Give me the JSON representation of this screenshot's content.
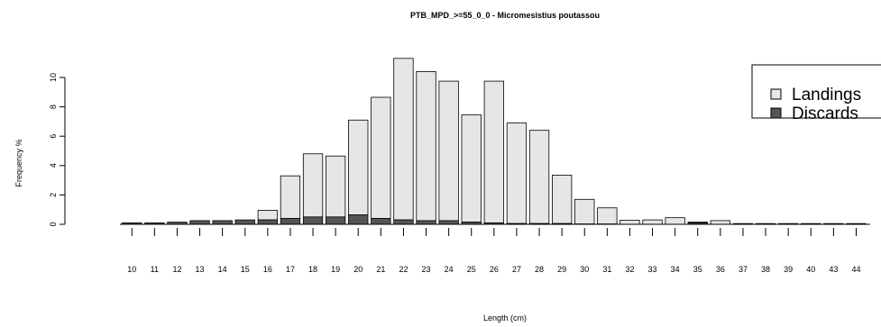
{
  "chart_data": {
    "type": "bar",
    "stacked": true,
    "title": "PTB_MPD_>=55_0_0 - Micromesistius poutassou",
    "xlabel": "Length (cm)",
    "ylabel": "Frequency %",
    "categories": [
      "10",
      "11",
      "12",
      "13",
      "14",
      "15",
      "16",
      "17",
      "18",
      "19",
      "20",
      "21",
      "22",
      "23",
      "24",
      "25",
      "26",
      "27",
      "28",
      "29",
      "30",
      "31",
      "32",
      "33",
      "34",
      "35",
      "36",
      "37",
      "38",
      "39",
      "40",
      "43",
      "44"
    ],
    "yticks": [
      "0",
      "2",
      "4",
      "6",
      "8",
      "10"
    ],
    "ylim": [
      0,
      11.3
    ],
    "series": [
      {
        "name": "Discards",
        "color": "#555555",
        "values": [
          0.1,
          0.1,
          0.15,
          0.25,
          0.25,
          0.3,
          0.3,
          0.4,
          0.5,
          0.5,
          0.65,
          0.4,
          0.3,
          0.25,
          0.25,
          0.15,
          0.1,
          0.05,
          0.05,
          0.05,
          0.02,
          0.02,
          0.0,
          0.0,
          0.0,
          0.1,
          0.0,
          0.05,
          0.05,
          0.05,
          0.05,
          0.05,
          0.05
        ]
      },
      {
        "name": "Landings",
        "color": "#e6e6e6",
        "values": [
          0.0,
          0.0,
          0.0,
          0.0,
          0.0,
          0.0,
          0.65,
          2.9,
          4.3,
          4.15,
          6.45,
          8.25,
          11.0,
          10.15,
          9.5,
          7.3,
          9.65,
          6.85,
          6.35,
          3.3,
          1.68,
          1.1,
          0.28,
          0.3,
          0.45,
          0.05,
          0.25,
          0.0,
          0.0,
          0.0,
          0.0,
          0.0,
          0.0
        ]
      }
    ],
    "legend": {
      "position": "top-right",
      "entries": [
        "Landings",
        "Discards"
      ]
    },
    "grid": false
  }
}
